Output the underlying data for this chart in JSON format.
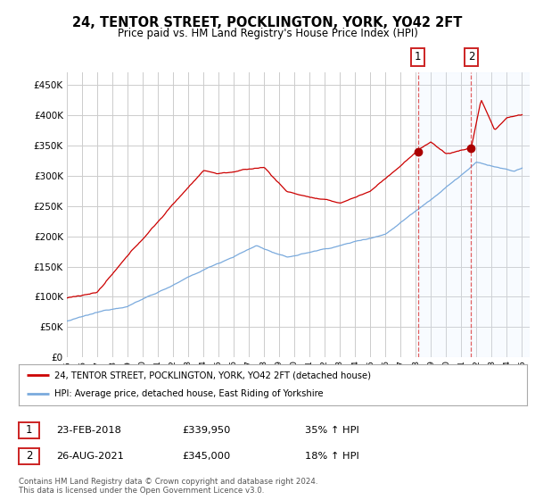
{
  "title": "24, TENTOR STREET, POCKLINGTON, YORK, YO42 2FT",
  "subtitle": "Price paid vs. HM Land Registry's House Price Index (HPI)",
  "ylim": [
    0,
    470000
  ],
  "yticks": [
    0,
    50000,
    100000,
    150000,
    200000,
    250000,
    300000,
    350000,
    400000,
    450000
  ],
  "xlim_start": 1995.0,
  "xlim_end": 2025.5,
  "sale1_date": 2018.13,
  "sale1_price": 339950,
  "sale2_date": 2021.65,
  "sale2_price": 345000,
  "legend_line1": "24, TENTOR STREET, POCKLINGTON, YORK, YO42 2FT (detached house)",
  "legend_line2": "HPI: Average price, detached house, East Riding of Yorkshire",
  "label1_date": "23-FEB-2018",
  "label1_price": "£339,950",
  "label1_hpi": "35% ↑ HPI",
  "label2_date": "26-AUG-2021",
  "label2_price": "£345,000",
  "label2_hpi": "18% ↑ HPI",
  "footer": "Contains HM Land Registry data © Crown copyright and database right 2024.\nThis data is licensed under the Open Government Licence v3.0.",
  "line_color_red": "#cc0000",
  "line_color_blue": "#7aaadd",
  "background_color": "#ffffff",
  "grid_color": "#cccccc",
  "sale_marker_color": "#aa0000",
  "highlight_color": "#ddeeff"
}
